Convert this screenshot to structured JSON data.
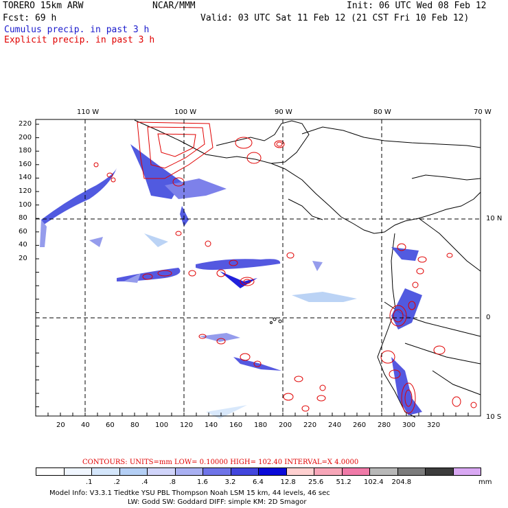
{
  "header": {
    "model": "TORERO  15km ARW",
    "org": "NCAR/MMM",
    "init": "Init: 06 UTC Wed 08 Feb 12",
    "fcst": "Fcst:   69 h",
    "valid": "Valid: 03 UTC Sat 11 Feb 12 (21 CST Fri 10 Feb 12)",
    "cumulus": "Cumulus precip. in past 3 h",
    "explicit": "Explicit precip. in past 3 h"
  },
  "map": {
    "lon_labels": [
      "110 W",
      "100 W",
      "90 W",
      "80 W",
      "70 W"
    ],
    "lat_labels": [
      "10 N",
      "0",
      "10 S"
    ],
    "y_ticks": [
      "220",
      "200",
      "180",
      "160",
      "140",
      "120",
      "100",
      "80",
      "60",
      "40",
      "20"
    ],
    "x_ticks": [
      "20",
      "40",
      "60",
      "80",
      "100",
      "120",
      "140",
      "160",
      "180",
      "200",
      "220",
      "240",
      "260",
      "280",
      "300",
      "320"
    ]
  },
  "contours": {
    "label": "CONTOURS:  UNITS=mm  LOW= 0.10000      HIGH=  102.40      INTERVAL=X  4.0000"
  },
  "legend": {
    "colors": [
      "#ffffff",
      "#f0f6ff",
      "#d4e6fb",
      "#b4cff5",
      "#d0d4fa",
      "#a9b0f2",
      "#6f74e8",
      "#4246dd",
      "#0a0ad8",
      "#ffd0d0",
      "#f7a6b8",
      "#f07aa8",
      "#b8b8b8",
      "#7c7c7c",
      "#3c3c3c",
      "#d9a8f3"
    ],
    "labels": [
      ".1",
      ".2",
      ".4",
      ".8",
      "1.6",
      "3.2",
      "6.4",
      "12.8",
      "25.6",
      "51.2",
      "102.4",
      "204.8"
    ],
    "unit": "mm"
  },
  "footer": {
    "line1": "Model Info: V3.3.1     Tiedtke YSU PBL  Thompson    Noah LSM  15 km,   44 levels,   46 sec",
    "line2": "LW: Godd SW: Goddard DIFF: simple KM: 2D Smagor"
  }
}
